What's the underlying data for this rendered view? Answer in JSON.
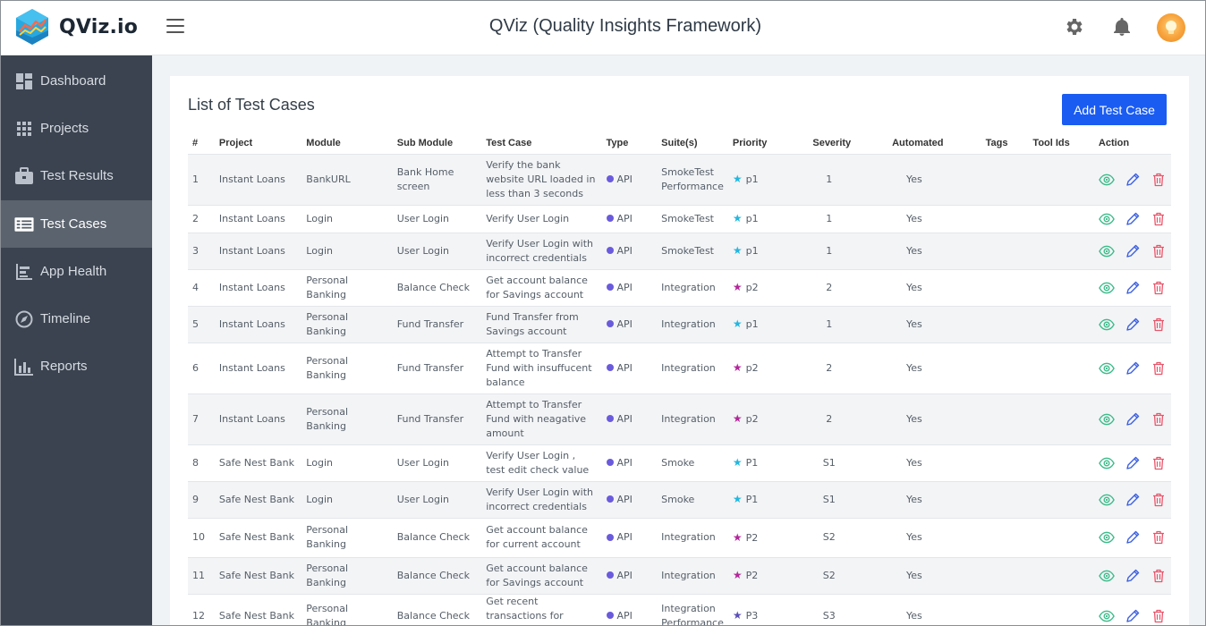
{
  "app": {
    "logo_text": "QViz.io",
    "title": "QViz (Quality Insights Framework)"
  },
  "sidebar": {
    "items": [
      {
        "label": "Dashboard",
        "icon": "dashboard-icon",
        "active": false
      },
      {
        "label": "Projects",
        "icon": "grid-icon",
        "active": false
      },
      {
        "label": "Test Results",
        "icon": "briefcase-icon",
        "active": false
      },
      {
        "label": "Test Cases",
        "icon": "list-icon",
        "active": true
      },
      {
        "label": "App Health",
        "icon": "app-health-icon",
        "active": false
      },
      {
        "label": "Timeline",
        "icon": "compass-icon",
        "active": false
      },
      {
        "label": "Reports",
        "icon": "bar-chart-icon",
        "active": false
      }
    ]
  },
  "main": {
    "title": "List of Test Cases",
    "add_button": "Add Test Case",
    "columns": [
      "#",
      "Project",
      "Module",
      "Sub Module",
      "Test Case",
      "Type",
      "Suite(s)",
      "Priority",
      "Severity",
      "Automated",
      "Tags",
      "Tool Ids",
      "Action"
    ],
    "rows": [
      {
        "num": "1",
        "project": "Instant Loans",
        "module": "BankURL",
        "sub_module": "Bank Home screen",
        "test_case": "Verify the bank website URL loaded in less than 3 seconds",
        "type": "API",
        "suites": "SmokeTest Performance",
        "priority": "p1",
        "priority_color": "#22b7e0",
        "severity": "1",
        "automated": "Yes",
        "tags": "",
        "tool_ids": ""
      },
      {
        "num": "2",
        "project": "Instant Loans",
        "module": "Login",
        "sub_module": "User Login",
        "test_case": "Verify User Login",
        "type": "API",
        "suites": "SmokeTest",
        "priority": "p1",
        "priority_color": "#22b7e0",
        "severity": "1",
        "automated": "Yes",
        "tags": "",
        "tool_ids": ""
      },
      {
        "num": "3",
        "project": "Instant Loans",
        "module": "Login",
        "sub_module": "User Login",
        "test_case": "Verify User Login with incorrect credentials",
        "type": "API",
        "suites": "SmokeTest",
        "priority": "p1",
        "priority_color": "#22b7e0",
        "severity": "1",
        "automated": "Yes",
        "tags": "",
        "tool_ids": ""
      },
      {
        "num": "4",
        "project": "Instant Loans",
        "module": "Personal Banking",
        "sub_module": "Balance Check",
        "test_case": "Get account balance for Savings account",
        "type": "API",
        "suites": "Integration",
        "priority": "p2",
        "priority_color": "#b3279a",
        "severity": "2",
        "automated": "Yes",
        "tags": "",
        "tool_ids": ""
      },
      {
        "num": "5",
        "project": "Instant Loans",
        "module": "Personal Banking",
        "sub_module": "Fund Transfer",
        "test_case": "Fund Transfer from Savings account",
        "type": "API",
        "suites": "Integration",
        "priority": "p1",
        "priority_color": "#22b7e0",
        "severity": "1",
        "automated": "Yes",
        "tags": "",
        "tool_ids": ""
      },
      {
        "num": "6",
        "project": "Instant Loans",
        "module": "Personal Banking",
        "sub_module": "Fund Transfer",
        "test_case": "Attempt to Transfer Fund with insuffucent balance",
        "type": "API",
        "suites": "Integration",
        "priority": "p2",
        "priority_color": "#b3279a",
        "severity": "2",
        "automated": "Yes",
        "tags": "",
        "tool_ids": ""
      },
      {
        "num": "7",
        "project": "Instant Loans",
        "module": "Personal Banking",
        "sub_module": "Fund Transfer",
        "test_case": "Attempt to Transfer Fund with neagative amount",
        "type": "API",
        "suites": "Integration",
        "priority": "p2",
        "priority_color": "#b3279a",
        "severity": "2",
        "automated": "Yes",
        "tags": "",
        "tool_ids": ""
      },
      {
        "num": "8",
        "project": "Safe Nest Bank",
        "module": "Login",
        "sub_module": "User Login",
        "test_case": "Verify User Login , test edit check value",
        "type": "API",
        "suites": "Smoke",
        "priority": "P1",
        "priority_color": "#22b7e0",
        "severity": "S1",
        "automated": "Yes",
        "tags": "",
        "tool_ids": ""
      },
      {
        "num": "9",
        "project": "Safe Nest Bank",
        "module": "Login",
        "sub_module": "User Login",
        "test_case": "Verify User Login with incorrect credentials",
        "type": "API",
        "suites": "Smoke",
        "priority": "P1",
        "priority_color": "#22b7e0",
        "severity": "S1",
        "automated": "Yes",
        "tags": "",
        "tool_ids": ""
      },
      {
        "num": "10",
        "project": "Safe Nest Bank",
        "module": "Personal Banking",
        "sub_module": "Balance Check",
        "test_case": "Get account balance for current account",
        "type": "API",
        "suites": "Integration",
        "priority": "P2",
        "priority_color": "#b3279a",
        "severity": "S2",
        "automated": "Yes",
        "tags": "",
        "tool_ids": ""
      },
      {
        "num": "11",
        "project": "Safe Nest Bank",
        "module": "Personal Banking",
        "sub_module": "Balance Check",
        "test_case": "Get account balance for Savings account",
        "type": "API",
        "suites": "Integration",
        "priority": "P2",
        "priority_color": "#b3279a",
        "severity": "S2",
        "automated": "Yes",
        "tags": "",
        "tool_ids": ""
      },
      {
        "num": "12",
        "project": "Safe Nest Bank",
        "module": "Personal Banking",
        "sub_module": "Balance Check",
        "test_case": "Get recent transactions for current account",
        "type": "API",
        "suites": "Integration Performance",
        "priority": "P3",
        "priority_color": "#5a4fb8",
        "severity": "S3",
        "automated": "Yes",
        "tags": "",
        "tool_ids": ""
      }
    ]
  },
  "colors": {
    "accent": "#1a5cf2",
    "sidebar_bg": "#3b4350",
    "sidebar_active": "#5b636e",
    "view": "#3dbb8a",
    "edit": "#3b5fe0",
    "delete": "#e8556a",
    "type_dot": "#6a5bdc"
  }
}
